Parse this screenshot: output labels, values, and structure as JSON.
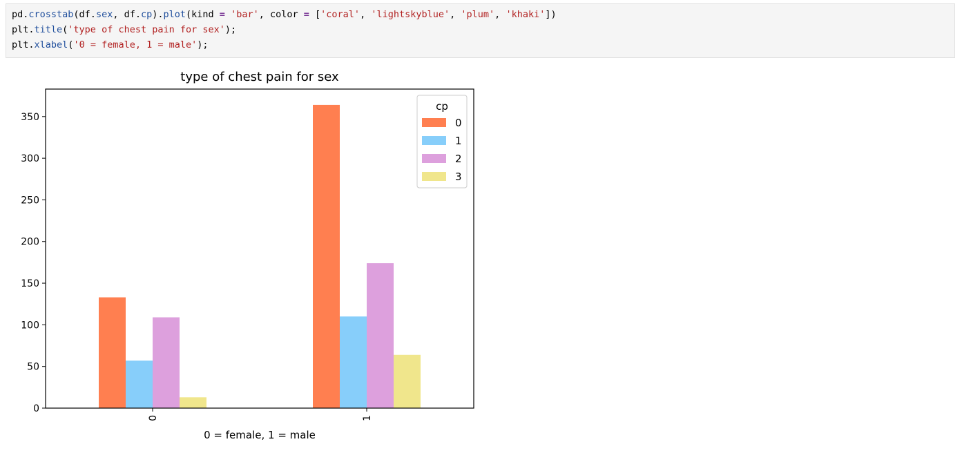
{
  "code": {
    "lines": [
      [
        {
          "t": "pd.",
          "c": ""
        },
        {
          "t": "crosstab",
          "c": "fn"
        },
        {
          "t": "(df.",
          "c": ""
        },
        {
          "t": "sex",
          "c": "fn"
        },
        {
          "t": ", df.",
          "c": ""
        },
        {
          "t": "cp",
          "c": "fn"
        },
        {
          "t": ").",
          "c": ""
        },
        {
          "t": "plot",
          "c": "fn"
        },
        {
          "t": "(kind ",
          "c": ""
        },
        {
          "t": "=",
          "c": "op"
        },
        {
          "t": " ",
          "c": ""
        },
        {
          "t": "'bar'",
          "c": "str"
        },
        {
          "t": ", color ",
          "c": ""
        },
        {
          "t": "=",
          "c": "op"
        },
        {
          "t": " [",
          "c": ""
        },
        {
          "t": "'coral'",
          "c": "str"
        },
        {
          "t": ", ",
          "c": ""
        },
        {
          "t": "'lightskyblue'",
          "c": "str"
        },
        {
          "t": ", ",
          "c": ""
        },
        {
          "t": "'plum'",
          "c": "str"
        },
        {
          "t": ", ",
          "c": ""
        },
        {
          "t": "'khaki'",
          "c": "str"
        },
        {
          "t": "])",
          "c": ""
        }
      ],
      [
        {
          "t": "plt.",
          "c": ""
        },
        {
          "t": "title",
          "c": "fn"
        },
        {
          "t": "(",
          "c": ""
        },
        {
          "t": "'type of chest pain for sex'",
          "c": "str"
        },
        {
          "t": ");",
          "c": ""
        }
      ],
      [
        {
          "t": "plt.",
          "c": ""
        },
        {
          "t": "xlabel",
          "c": "fn"
        },
        {
          "t": "(",
          "c": ""
        },
        {
          "t": "'0 = female, 1 = male'",
          "c": "str"
        },
        {
          "t": ");",
          "c": ""
        }
      ]
    ]
  },
  "chart_data": {
    "type": "bar",
    "title": "type of chest pain for sex",
    "xlabel": "0 = female, 1 = male",
    "ylabel": "",
    "categories": [
      "0",
      "1"
    ],
    "ylim": [
      0,
      383
    ],
    "yticks": [
      0,
      50,
      100,
      150,
      200,
      250,
      300,
      350
    ],
    "grid": false,
    "legend_title": "cp",
    "legend_position": "top-right",
    "series": [
      {
        "name": "0",
        "color": "#ff7f50",
        "values": [
          133,
          364
        ]
      },
      {
        "name": "1",
        "color": "#87cefa",
        "values": [
          57,
          110
        ]
      },
      {
        "name": "2",
        "color": "#dda0dd",
        "values": [
          109,
          174
        ]
      },
      {
        "name": "3",
        "color": "#f0e68c",
        "values": [
          13,
          64
        ]
      }
    ]
  }
}
